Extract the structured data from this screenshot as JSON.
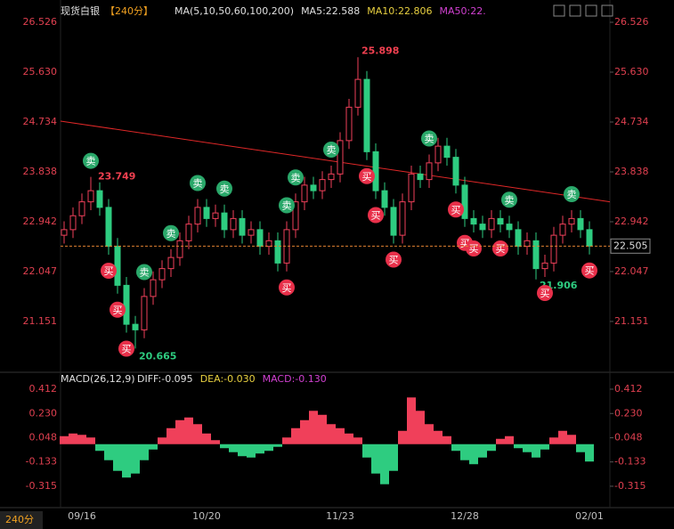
{
  "chart_data": {
    "type": "candlestick",
    "title": "现货白银",
    "period": "【240分】",
    "ma_legend": [
      {
        "name": "MA(5,10,50,60,100,200)",
        "color": "#e0e0e0"
      },
      {
        "name": "MA5:22.588",
        "color": "#e0e0e0"
      },
      {
        "name": "MA10:22.806",
        "color": "#e8d040"
      },
      {
        "name": "MA50:22.",
        "color": "#d040d0"
      }
    ],
    "categories": [
      null,
      null,
      "09/16",
      null,
      null,
      null,
      null,
      null,
      null,
      null,
      null,
      null,
      null,
      null,
      null,
      null,
      "10/20",
      null,
      null,
      null,
      null,
      null,
      null,
      null,
      null,
      null,
      null,
      null,
      null,
      null,
      null,
      "11/23",
      null,
      null,
      null,
      null,
      null,
      null,
      null,
      null,
      null,
      null,
      null,
      null,
      null,
      "12/28",
      null,
      null,
      null,
      null,
      null,
      null,
      null,
      null,
      null,
      null,
      null,
      null,
      null,
      "02/01"
    ],
    "open": [
      22.7,
      22.8,
      23.05,
      23.3,
      23.5,
      23.2,
      22.5,
      21.8,
      21.1,
      21.0,
      21.6,
      21.9,
      22.1,
      22.3,
      22.6,
      22.9,
      23.2,
      23.0,
      23.1,
      22.8,
      23.0,
      22.7,
      22.8,
      22.5,
      22.6,
      22.2,
      22.8,
      23.3,
      23.6,
      23.5,
      23.7,
      23.8,
      24.4,
      25.0,
      25.5,
      24.2,
      23.5,
      23.2,
      22.7,
      23.3,
      23.8,
      23.7,
      24.0,
      24.3,
      24.1,
      23.6,
      23.0,
      22.9,
      22.8,
      23.0,
      22.9,
      22.8,
      22.5,
      22.6,
      22.1,
      22.2,
      22.7,
      22.9,
      23.0,
      22.8
    ],
    "high": [
      22.95,
      23.2,
      23.45,
      23.749,
      23.65,
      23.35,
      22.65,
      21.95,
      21.25,
      21.75,
      22.05,
      22.25,
      22.45,
      22.75,
      23.05,
      23.35,
      23.35,
      23.25,
      23.25,
      23.15,
      23.15,
      22.95,
      22.95,
      22.75,
      22.75,
      22.95,
      23.45,
      23.75,
      23.75,
      23.85,
      23.95,
      24.55,
      25.15,
      25.898,
      25.65,
      24.35,
      23.65,
      23.35,
      23.45,
      23.95,
      23.95,
      24.15,
      24.45,
      24.45,
      24.25,
      23.75,
      23.15,
      23.05,
      23.15,
      23.15,
      23.05,
      22.95,
      22.75,
      22.75,
      22.35,
      22.85,
      23.05,
      23.15,
      23.15,
      22.95
    ],
    "low": [
      22.55,
      22.65,
      22.9,
      23.15,
      23.05,
      22.35,
      21.65,
      20.95,
      20.665,
      20.85,
      21.45,
      21.75,
      21.95,
      22.15,
      22.45,
      22.75,
      22.85,
      22.85,
      22.65,
      22.65,
      22.55,
      22.55,
      22.35,
      22.35,
      22.05,
      22.05,
      22.65,
      23.15,
      23.35,
      23.35,
      23.55,
      23.65,
      24.25,
      24.85,
      24.05,
      23.35,
      23.05,
      22.55,
      22.55,
      23.15,
      23.55,
      23.55,
      23.85,
      23.95,
      23.45,
      22.85,
      22.75,
      22.65,
      22.65,
      22.75,
      22.65,
      22.35,
      22.35,
      21.906,
      21.95,
      22.05,
      22.55,
      22.75,
      22.65,
      22.355
    ],
    "close": [
      22.8,
      23.05,
      23.3,
      23.5,
      23.2,
      22.5,
      21.8,
      21.1,
      21.0,
      21.6,
      21.9,
      22.1,
      22.3,
      22.6,
      22.9,
      23.2,
      23.0,
      23.1,
      22.8,
      23.0,
      22.7,
      22.8,
      22.5,
      22.6,
      22.2,
      22.8,
      23.3,
      23.6,
      23.5,
      23.7,
      23.8,
      24.4,
      25.0,
      25.5,
      24.2,
      23.5,
      23.2,
      22.7,
      23.3,
      23.8,
      23.7,
      24.0,
      24.3,
      24.1,
      23.6,
      23.0,
      22.9,
      22.8,
      23.0,
      22.9,
      22.8,
      22.5,
      22.6,
      22.1,
      22.2,
      22.7,
      22.9,
      23.0,
      22.8,
      22.505
    ],
    "up_color": "#f0405a",
    "down_color": "#2ecc80",
    "ylim": [
      20.446,
      26.638
    ],
    "yticks": [
      26.526,
      {
        "value": 25.63,
        "label": "25.630"
      },
      24.734,
      23.838,
      22.942,
      22.047,
      21.151
    ],
    "trendline": {
      "start": 24.75,
      "end": 23.3,
      "color": "#e02828"
    },
    "signals": [
      {
        "index": 3,
        "label": "卖"
      },
      {
        "index": 5,
        "label": "买"
      },
      {
        "index": 6,
        "label": "买"
      },
      {
        "index": 7,
        "label": "买"
      },
      {
        "index": 9,
        "label": "卖"
      },
      {
        "index": 12,
        "label": "卖"
      },
      {
        "index": 15,
        "label": "卖"
      },
      {
        "index": 18,
        "label": "卖"
      },
      {
        "index": 25,
        "label": "买"
      },
      {
        "index": 25,
        "label": "卖"
      },
      {
        "index": 26,
        "label": "卖"
      },
      {
        "index": 30,
        "label": "卖"
      },
      {
        "index": 34,
        "label": "买"
      },
      {
        "index": 35,
        "label": "买"
      },
      {
        "index": 37,
        "label": "买"
      },
      {
        "index": 41,
        "label": "卖"
      },
      {
        "index": 44,
        "label": "买"
      },
      {
        "index": 45,
        "label": "买"
      },
      {
        "index": 46,
        "label": "买"
      },
      {
        "index": 49,
        "label": "买"
      },
      {
        "index": 50,
        "label": "卖"
      },
      {
        "index": 54,
        "label": "买"
      },
      {
        "index": 57,
        "label": "卖"
      },
      {
        "index": 59,
        "label": "买"
      }
    ],
    "buy_color": "#e8304a",
    "sell_color": "#2aa86a",
    "macd": {
      "title": "MACD(26,12,9)",
      "legend": [
        {
          "name": "DIFF:-0.095",
          "color": "#e0e0e0"
        },
        {
          "name": "DEA:-0.030",
          "color": "#e8d040"
        },
        {
          "name": "MACD:-0.130",
          "color": "#d040d0"
        }
      ],
      "values": [
        0.06,
        0.08,
        0.07,
        0.05,
        -0.05,
        -0.12,
        -0.2,
        -0.25,
        -0.22,
        -0.12,
        -0.04,
        0.05,
        0.12,
        0.18,
        0.2,
        0.15,
        0.08,
        0.03,
        -0.03,
        -0.06,
        -0.09,
        -0.1,
        -0.07,
        -0.05,
        -0.02,
        0.05,
        0.12,
        0.18,
        0.25,
        0.22,
        0.15,
        0.12,
        0.08,
        0.05,
        -0.1,
        -0.22,
        -0.3,
        -0.2,
        0.1,
        0.35,
        0.25,
        0.15,
        0.1,
        0.06,
        -0.05,
        -0.12,
        -0.15,
        -0.1,
        -0.05,
        0.04,
        0.06,
        -0.03,
        -0.06,
        -0.1,
        -0.04,
        0.05,
        0.1,
        0.07,
        -0.06,
        -0.13
      ],
      "ylim": [
        -0.462,
        0.492
      ],
      "yticks": [
        0.412,
        {
          "value": 0.23,
          "label": "0.230"
        },
        0.048,
        -0.133,
        -0.315
      ]
    },
    "period_label": "240分"
  }
}
